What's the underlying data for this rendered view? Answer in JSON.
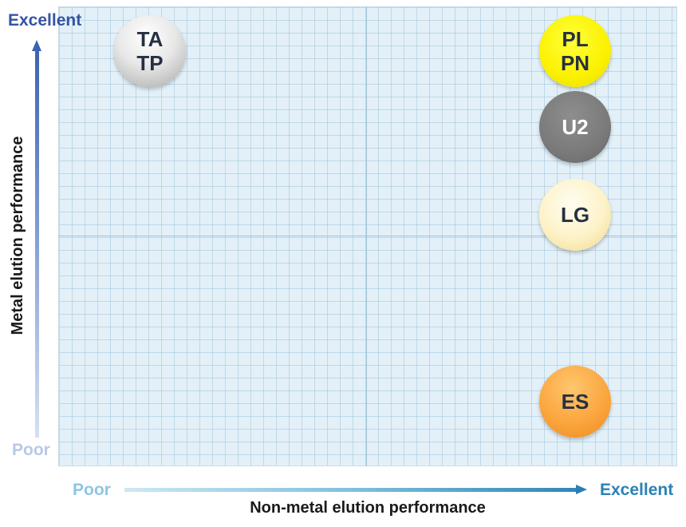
{
  "y_axis": {
    "title": "Metal elution performance",
    "high_label": "Excellent",
    "low_label": "Poor"
  },
  "x_axis": {
    "title": "Non-metal elution performance",
    "high_label": "Excellent",
    "low_label": "Poor"
  },
  "products": [
    {
      "label_line1": "TA",
      "label_line2": "TP",
      "color": "#d9d9d9"
    },
    {
      "label_line1": "PL",
      "label_line2": "PN",
      "color": "#fbf100"
    },
    {
      "label_line1": "U2",
      "label_line2": "",
      "color": "#7a7a7a"
    },
    {
      "label_line1": "LG",
      "label_line2": "",
      "color": "#fdf2c8"
    },
    {
      "label_line1": "ES",
      "label_line2": "",
      "color": "#fba63f"
    }
  ],
  "colors": {
    "plot_background": "#e3f0f8",
    "y_axis_accent": "#3554a5",
    "x_axis_accent": "#2a82b6"
  }
}
